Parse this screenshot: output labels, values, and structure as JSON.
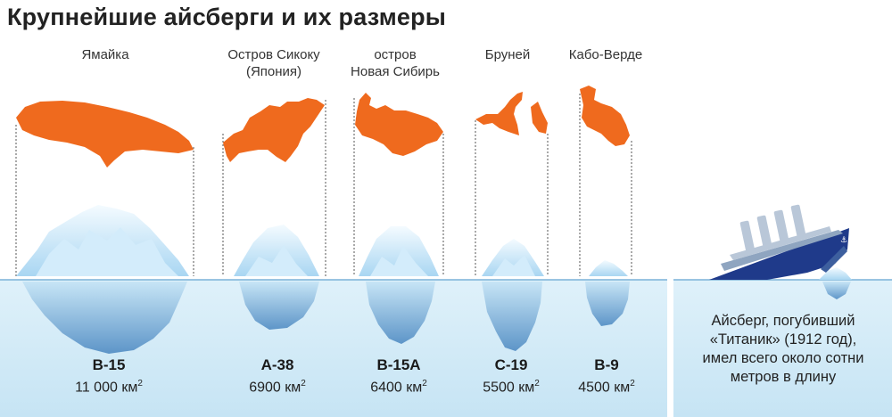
{
  "title": "Крупнейшие айсберги и их размеры",
  "colors": {
    "island": "#ef6a1e",
    "water": "#d3ecf8",
    "ice_light": "#eef8fe",
    "ice_mid": "#bfe2f6",
    "ice_dark": "#7fb5dc",
    "ship_hull": "#1f3a8a",
    "ship_deck": "#8fa5c0"
  },
  "icebergs": [
    {
      "place_line1": "Ямайка",
      "place_line2": "",
      "name": "B-15",
      "area_value": "11 000",
      "area_unit": "км",
      "area_sup": "2",
      "area_km2": 11000
    },
    {
      "place_line1": "Остров Сикоку",
      "place_line2": "(Япония)",
      "name": "A-38",
      "area_value": "6900",
      "area_unit": "км",
      "area_sup": "2",
      "area_km2": 6900
    },
    {
      "place_line1": "остров",
      "place_line2": "Новая Сибирь",
      "name": "B-15A",
      "area_value": "6400",
      "area_unit": "км",
      "area_sup": "2",
      "area_km2": 6400
    },
    {
      "place_line1": "Бруней",
      "place_line2": "",
      "name": "C-19",
      "area_value": "5500",
      "area_unit": "км",
      "area_sup": "2",
      "area_km2": 5500
    },
    {
      "place_line1": "Кабо-Верде",
      "place_line2": "",
      "name": "B-9",
      "area_value": "4500",
      "area_unit": "км",
      "area_sup": "2",
      "area_km2": 4500
    }
  ],
  "titanic_note": {
    "line1": "Айсберг, погубивший",
    "line2": "«Титаник» (1912 год),",
    "line3": "имел всего около сотни",
    "line4": "метров в длину"
  }
}
